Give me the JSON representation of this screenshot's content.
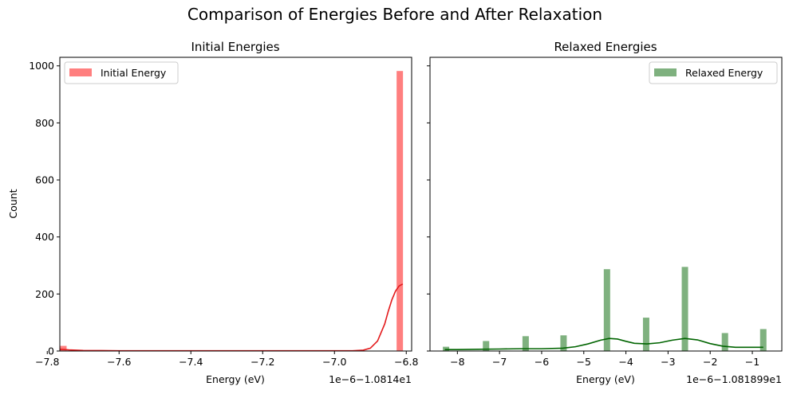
{
  "suptitle": "Comparison of Energies Before and After Relaxation",
  "chart_data": [
    {
      "type": "bar",
      "title": "Initial Energies",
      "xlabel": "Energy (eV)",
      "ylabel": "Count",
      "offset_text": "1e−6−1.0814e1",
      "legend": {
        "label": "Initial Energy",
        "position": "upper left"
      },
      "bar_color": "#ff0000",
      "bar_alpha": 0.5,
      "kde_color": "#e31a1c",
      "xlim": [
        -7.765,
        -6.785
      ],
      "ylim": [
        0,
        1030
      ],
      "xticks": [
        -7.8,
        -7.6,
        -7.4,
        -7.2,
        -7.0,
        -6.8
      ],
      "xtick_labels": [
        "−7.8",
        "−7.6",
        "−7.4",
        "−7.2",
        "−7.0",
        "−6.8"
      ],
      "yticks": [
        0,
        200,
        400,
        600,
        800,
        1000
      ],
      "ytick_labels": [
        "0",
        "200",
        "400",
        "600",
        "800",
        "1000"
      ],
      "bins": [
        {
          "x": -7.755,
          "value": 18
        },
        {
          "x": -6.818,
          "value": 982
        }
      ],
      "kde": [
        [
          -7.765,
          6
        ],
        [
          -7.74,
          4
        ],
        [
          -7.7,
          2
        ],
        [
          -7.6,
          1
        ],
        [
          -7.4,
          1
        ],
        [
          -7.2,
          1
        ],
        [
          -7.0,
          1
        ],
        [
          -6.95,
          1
        ],
        [
          -6.92,
          3
        ],
        [
          -6.9,
          10
        ],
        [
          -6.88,
          35
        ],
        [
          -6.86,
          95
        ],
        [
          -6.85,
          140
        ],
        [
          -6.84,
          180
        ],
        [
          -6.83,
          210
        ],
        [
          -6.82,
          228
        ],
        [
          -6.81,
          235
        ]
      ]
    },
    {
      "type": "bar",
      "title": "Relaxed Energies",
      "xlabel": "Energy (eV)",
      "ylabel": "",
      "offset_text": "1e−6−1.081899e1",
      "legend": {
        "label": "Relaxed Energy",
        "position": "upper right"
      },
      "bar_color": "#006400",
      "bar_alpha": 0.5,
      "kde_color": "#006400",
      "xlim": [
        -8.65,
        -0.3
      ],
      "ylim": [
        0,
        1030
      ],
      "xticks": [
        -8,
        -7,
        -6,
        -5,
        -4,
        -3,
        -2,
        -1
      ],
      "xtick_labels": [
        "−8",
        "−7",
        "−6",
        "−5",
        "−4",
        "−3",
        "−2",
        "−1"
      ],
      "yticks": [
        0,
        200,
        400,
        600,
        800,
        1000
      ],
      "ytick_labels": [
        "",
        "",
        "",
        "",
        "",
        ""
      ],
      "bins": [
        {
          "x": -8.27,
          "value": 15
        },
        {
          "x": -7.32,
          "value": 35
        },
        {
          "x": -6.38,
          "value": 52
        },
        {
          "x": -5.48,
          "value": 55
        },
        {
          "x": -4.45,
          "value": 287
        },
        {
          "x": -3.52,
          "value": 117
        },
        {
          "x": -2.6,
          "value": 295
        },
        {
          "x": -1.65,
          "value": 63
        },
        {
          "x": -0.74,
          "value": 77
        }
      ],
      "kde": [
        [
          -8.3,
          5
        ],
        [
          -8.0,
          5
        ],
        [
          -7.5,
          6
        ],
        [
          -7.0,
          7
        ],
        [
          -6.5,
          8
        ],
        [
          -6.0,
          8
        ],
        [
          -5.5,
          10
        ],
        [
          -5.2,
          15
        ],
        [
          -4.9,
          25
        ],
        [
          -4.6,
          38
        ],
        [
          -4.4,
          44
        ],
        [
          -4.2,
          42
        ],
        [
          -4.0,
          34
        ],
        [
          -3.8,
          27
        ],
        [
          -3.5,
          25
        ],
        [
          -3.2,
          29
        ],
        [
          -2.9,
          38
        ],
        [
          -2.6,
          44
        ],
        [
          -2.3,
          39
        ],
        [
          -2.0,
          26
        ],
        [
          -1.7,
          17
        ],
        [
          -1.4,
          13
        ],
        [
          -1.1,
          13
        ],
        [
          -0.74,
          13
        ]
      ]
    }
  ]
}
